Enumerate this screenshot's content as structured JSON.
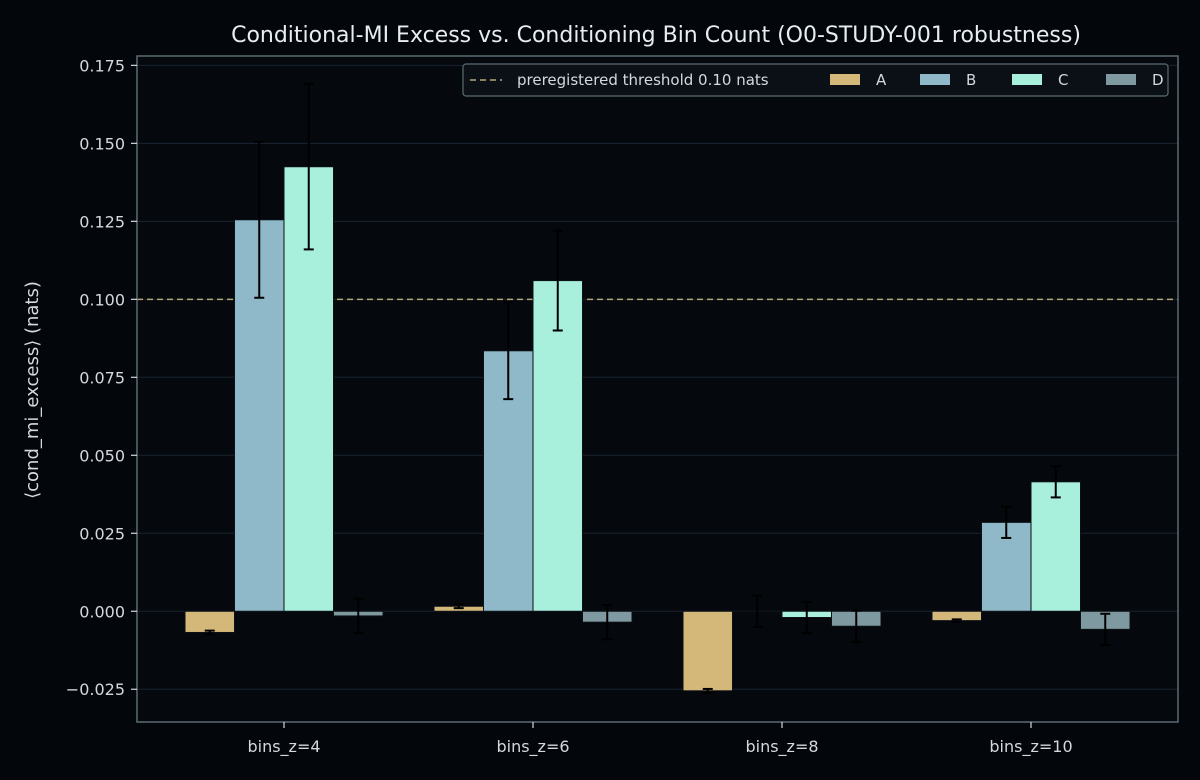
{
  "chart_data": {
    "type": "bar",
    "title": "Conditional-MI Excess vs. Conditioning Bin Count (O0-STUDY-001 robustness)",
    "xlabel": "",
    "ylabel": "⟨cond_mi_excess⟩  (nats)",
    "categories": [
      "bins_z=4",
      "bins_z=6",
      "bins_z=8",
      "bins_z=10"
    ],
    "series": [
      {
        "name": "A",
        "color": "#d4b87a",
        "values": [
          -0.0068,
          0.0016,
          -0.0255,
          -0.003
        ],
        "errors": [
          0.0006,
          0.0006,
          0.0006,
          0.0004
        ]
      },
      {
        "name": "B",
        "color": "#8fb8c8",
        "values": [
          0.1255,
          0.0835,
          0.0,
          0.0285
        ],
        "errors": [
          0.025,
          0.0155,
          0.005,
          0.005
        ]
      },
      {
        "name": "C",
        "color": "#a8f0dc",
        "values": [
          0.1425,
          0.106,
          -0.002,
          0.0415
        ],
        "errors": [
          0.0265,
          0.016,
          0.005,
          0.005
        ]
      },
      {
        "name": "D",
        "color": "#7f99a0",
        "values": [
          -0.0015,
          -0.0035,
          -0.0048,
          -0.0058
        ],
        "errors": [
          0.0055,
          0.0055,
          0.005,
          0.005
        ]
      }
    ],
    "threshold": {
      "value": 0.1,
      "label": "preregistered threshold 0.10 nats",
      "color": "#b5a878"
    },
    "ylim": [
      -0.0355,
      0.178
    ],
    "yticks": [
      -0.025,
      0.0,
      0.025,
      0.05,
      0.075,
      0.1,
      0.125,
      0.15,
      0.175
    ],
    "ytick_labels": [
      "−0.025",
      "0.000",
      "0.025",
      "0.050",
      "0.075",
      "0.100",
      "0.125",
      "0.150",
      "0.175"
    ],
    "grid": true,
    "legend_position": "top-right",
    "colors": {
      "background": "#03060a",
      "plot_area": "#05080d",
      "frame": "#5d6b74",
      "grid": "#1a2430",
      "errorbar": "#000000"
    }
  }
}
